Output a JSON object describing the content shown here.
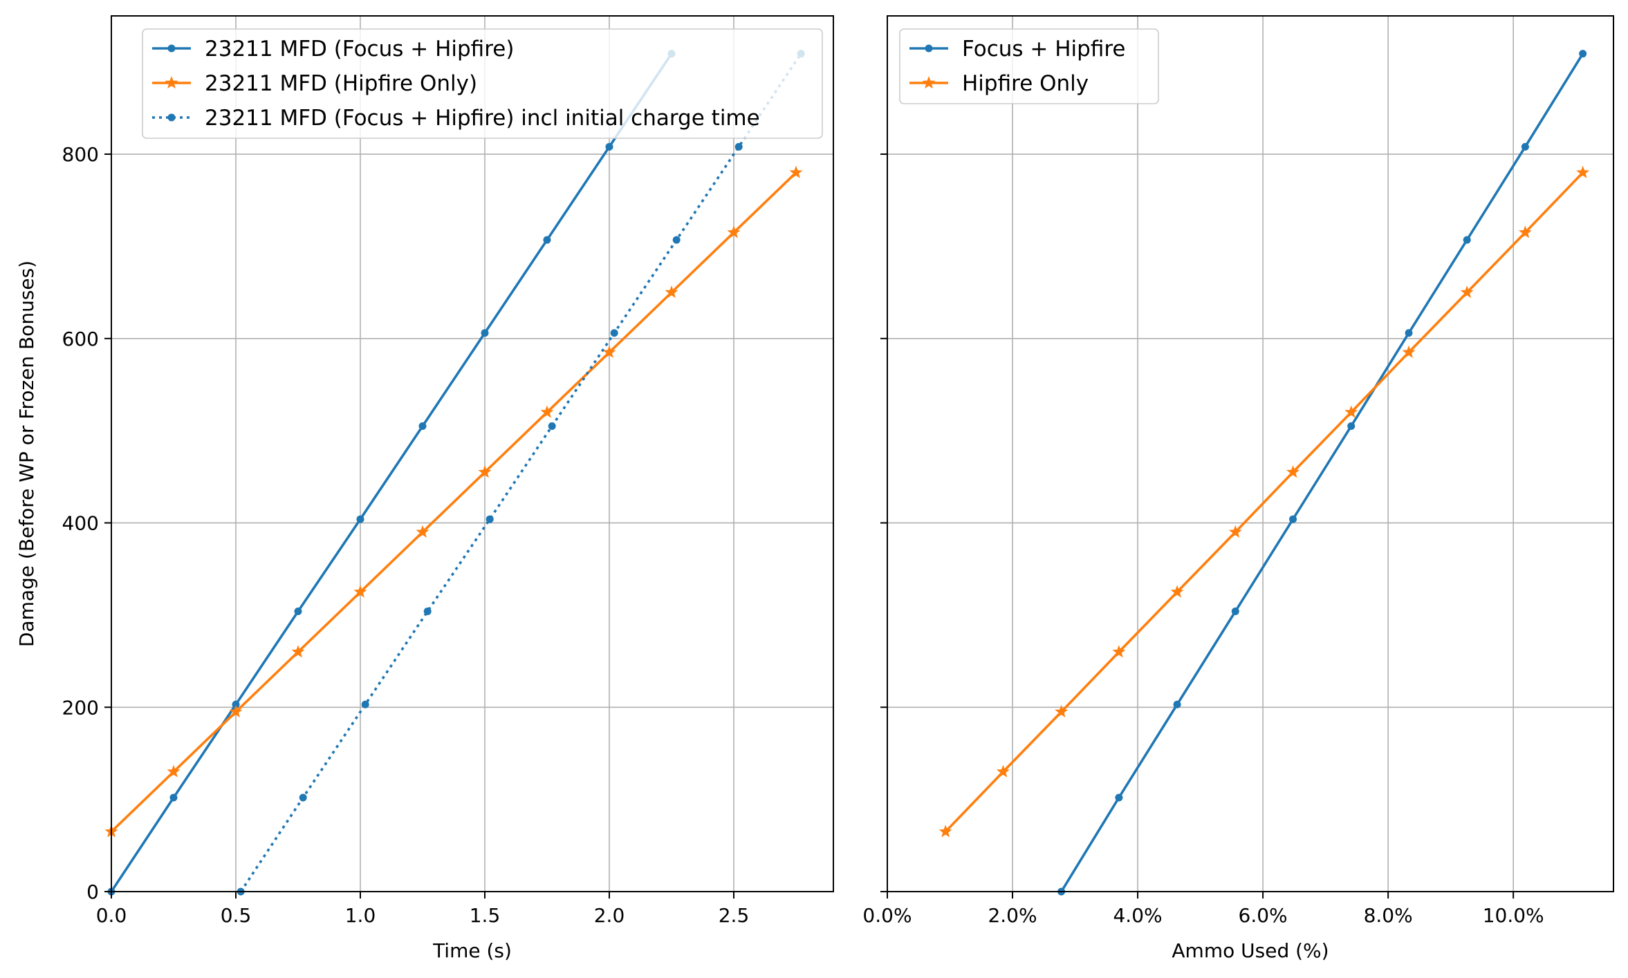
{
  "chart_data": [
    {
      "type": "line",
      "xlabel": "Time (s)",
      "ylabel": "Damage (Before WP or Frozen Bonuses)",
      "xlim": [
        0,
        2.9
      ],
      "ylim": [
        0,
        950
      ],
      "xticks": [
        0.0,
        0.5,
        1.0,
        1.5,
        2.0,
        2.5
      ],
      "xtick_labels": [
        "0.0",
        "0.5",
        "1.0",
        "1.5",
        "2.0",
        "2.5"
      ],
      "yticks": [
        0,
        200,
        400,
        600,
        800
      ],
      "ytick_labels": [
        "0",
        "200",
        "400",
        "600",
        "800"
      ],
      "grid": true,
      "legend_position": "top-center",
      "series": [
        {
          "name": "23211 MFD (Focus + Hipfire)",
          "color": "#1f77b4",
          "line_style": "solid",
          "marker": "dot",
          "x": [
            0,
            0.25,
            0.5,
            0.75,
            1.0,
            1.25,
            1.5,
            1.75,
            2.0,
            2.25
          ],
          "y": [
            0,
            102,
            203,
            304,
            404,
            505,
            606,
            707,
            808,
            909
          ]
        },
        {
          "name": "23211 MFD (Hipfire Only)",
          "color": "#ff7f0e",
          "line_style": "solid",
          "marker": "star",
          "x": [
            0,
            0.25,
            0.5,
            0.75,
            1.0,
            1.25,
            1.5,
            1.75,
            2.0,
            2.25,
            2.5,
            2.75
          ],
          "y": [
            65,
            130,
            195,
            260,
            325,
            390,
            455,
            520,
            585,
            650,
            715,
            780
          ]
        },
        {
          "name": "23211 MFD (Focus + Hipfire) incl initial charge time",
          "color": "#1f77b4",
          "line_style": "dotted",
          "marker": "dot",
          "x": [
            0.52,
            0.77,
            1.02,
            1.27,
            1.52,
            1.77,
            2.02,
            2.27,
            2.52,
            2.77
          ],
          "y": [
            0,
            102,
            203,
            304,
            404,
            505,
            606,
            707,
            808,
            909
          ]
        }
      ]
    },
    {
      "type": "line",
      "xlabel": "Ammo Used (%)",
      "ylabel": "",
      "xlim": [
        0,
        11.6
      ],
      "ylim": [
        0,
        950
      ],
      "xticks": [
        0,
        2,
        4,
        6,
        8,
        10
      ],
      "xtick_labels": [
        "0.0%",
        "2.0%",
        "4.0%",
        "6.0%",
        "8.0%",
        "10.0%"
      ],
      "yticks": [
        0,
        200,
        400,
        600,
        800
      ],
      "grid": true,
      "legend_position": "top-left",
      "series": [
        {
          "name": "Focus + Hipfire",
          "color": "#1f77b4",
          "line_style": "solid",
          "marker": "dot",
          "x": [
            2.78,
            3.7,
            4.63,
            5.56,
            6.48,
            7.41,
            8.33,
            9.26,
            10.19,
            11.11
          ],
          "y": [
            0,
            102,
            203,
            304,
            404,
            505,
            606,
            707,
            808,
            909
          ]
        },
        {
          "name": "Hipfire Only",
          "color": "#ff7f0e",
          "line_style": "solid",
          "marker": "star",
          "x": [
            0.93,
            1.85,
            2.78,
            3.7,
            4.63,
            5.56,
            6.48,
            7.41,
            8.33,
            9.26,
            10.19,
            11.11
          ],
          "y": [
            65,
            130,
            195,
            260,
            325,
            390,
            455,
            520,
            585,
            650,
            715,
            780
          ]
        }
      ]
    }
  ]
}
